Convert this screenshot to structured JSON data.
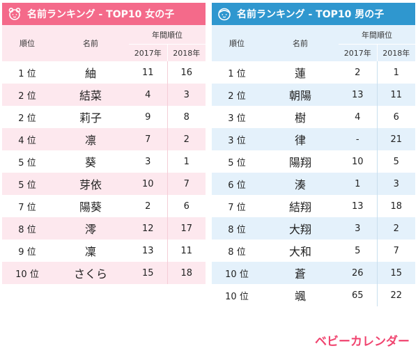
{
  "colors": {
    "girls_header": "#f46a8a",
    "girls_row_alt": "#fde8ee",
    "boys_header": "#2f97cf",
    "boys_row_alt": "#e4f1fb",
    "logo": "#f0446f"
  },
  "girls": {
    "title": "名前ランキング - TOP10 女の子",
    "icon": "girl-face-icon",
    "headers": {
      "rank": "順位",
      "name": "名前",
      "year_group": "年間順位",
      "y2017": "2017年",
      "y2018": "2018年"
    },
    "rows": [
      {
        "rank": "1 位",
        "name": "紬",
        "y2017": "11",
        "y2018": "16"
      },
      {
        "rank": "2 位",
        "name": "結菜",
        "y2017": "4",
        "y2018": "3"
      },
      {
        "rank": "2 位",
        "name": "莉子",
        "y2017": "9",
        "y2018": "8"
      },
      {
        "rank": "4 位",
        "name": "凛",
        "y2017": "7",
        "y2018": "2"
      },
      {
        "rank": "5 位",
        "name": "葵",
        "y2017": "3",
        "y2018": "1"
      },
      {
        "rank": "5 位",
        "name": "芽依",
        "y2017": "10",
        "y2018": "7"
      },
      {
        "rank": "7 位",
        "name": "陽葵",
        "y2017": "2",
        "y2018": "6"
      },
      {
        "rank": "8 位",
        "name": "澪",
        "y2017": "12",
        "y2018": "17"
      },
      {
        "rank": "9 位",
        "name": "凜",
        "y2017": "13",
        "y2018": "11"
      },
      {
        "rank": "10 位",
        "name": "さくら",
        "y2017": "15",
        "y2018": "18"
      }
    ]
  },
  "boys": {
    "title": "名前ランキング - TOP10 男の子",
    "icon": "boy-face-icon",
    "headers": {
      "rank": "順位",
      "name": "名前",
      "year_group": "年間順位",
      "y2017": "2017年",
      "y2018": "2018年"
    },
    "rows": [
      {
        "rank": "1 位",
        "name": "蓮",
        "y2017": "2",
        "y2018": "1"
      },
      {
        "rank": "2 位",
        "name": "朝陽",
        "y2017": "13",
        "y2018": "11"
      },
      {
        "rank": "3 位",
        "name": "樹",
        "y2017": "4",
        "y2018": "6"
      },
      {
        "rank": "3 位",
        "name": "律",
        "y2017": "-",
        "y2018": "21"
      },
      {
        "rank": "5 位",
        "name": "陽翔",
        "y2017": "10",
        "y2018": "5"
      },
      {
        "rank": "6 位",
        "name": "湊",
        "y2017": "1",
        "y2018": "3"
      },
      {
        "rank": "7 位",
        "name": "結翔",
        "y2017": "13",
        "y2018": "18"
      },
      {
        "rank": "8 位",
        "name": "大翔",
        "y2017": "3",
        "y2018": "2"
      },
      {
        "rank": "8 位",
        "name": "大和",
        "y2017": "5",
        "y2018": "7"
      },
      {
        "rank": "10 位",
        "name": "蒼",
        "y2017": "26",
        "y2018": "15"
      },
      {
        "rank": "10 位",
        "name": "颯",
        "y2017": "65",
        "y2018": "22"
      }
    ]
  },
  "logo": {
    "text": "ベビーカレンダー"
  }
}
